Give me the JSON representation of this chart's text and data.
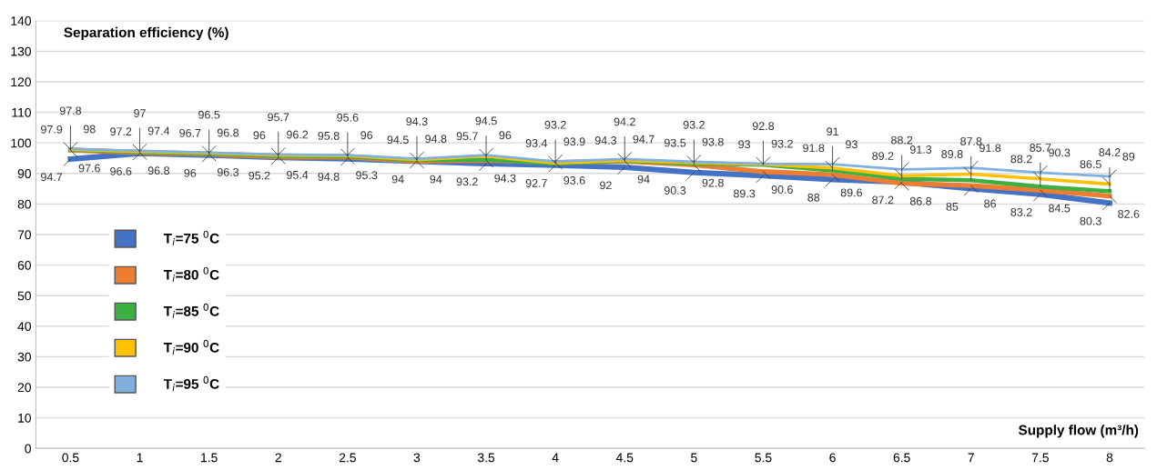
{
  "chart_data": {
    "type": "line",
    "ylabel": "Separation efficiency (%)",
    "xlabel": "Supply flow (m³/h)",
    "categories": [
      "0.5",
      "1",
      "1.5",
      "2",
      "2.5",
      "3",
      "3.5",
      "4",
      "4.5",
      "5",
      "5.5",
      "6",
      "6.5",
      "7",
      "7.5",
      "8"
    ],
    "series": [
      {
        "name": "T$_{i}$=75 $^{0}$C",
        "color": "#4472c4",
        "values": [
          94.7,
          96.6,
          96,
          95.2,
          94.8,
          94,
          93.2,
          92.7,
          92,
          90.3,
          89.3,
          88,
          87.2,
          85,
          83.2,
          80.3
        ]
      },
      {
        "name": "T$_{i}$=80 $^{0}$C",
        "color": "#ed7d31",
        "values": [
          97.6,
          96.8,
          96.3,
          95.4,
          95.3,
          94,
          94.3,
          93.6,
          94,
          92.8,
          90.6,
          89.6,
          86.8,
          86,
          84.5,
          82.6
        ]
      },
      {
        "name": "T$_{i}$=85 $^{0}$C",
        "color": "#3cb043",
        "values": [
          97.8,
          97,
          96.5,
          95.7,
          95.6,
          94.3,
          94.5,
          93.2,
          94.2,
          93.2,
          92.8,
          91,
          88.2,
          87.8,
          85.7,
          84.2
        ]
      },
      {
        "name": "T$_{i}$=90 $^{0}$C",
        "color": "#ffc000",
        "values": [
          97.9,
          97.2,
          96.7,
          96,
          95.8,
          94.5,
          95.7,
          93.4,
          94.3,
          93.5,
          93,
          91.8,
          89.2,
          89.8,
          88.2,
          86.5
        ]
      },
      {
        "name": "T$_{i}$=95 $^{0}$C",
        "color": "#7fb0e0",
        "values": [
          98,
          97.4,
          96.8,
          96.2,
          96,
          94.8,
          96,
          93.9,
          94.7,
          93.8,
          93.2,
          93,
          91.3,
          91.8,
          90.3,
          89
        ]
      }
    ],
    "ylim": [
      0,
      140
    ],
    "yticks": [
      0,
      10,
      20,
      30,
      40,
      50,
      60,
      70,
      80,
      90,
      100,
      110,
      120,
      130,
      140
    ],
    "grid": "y",
    "legend": "left",
    "marker": "none",
    "line_style": "solid",
    "data_labels": true
  }
}
